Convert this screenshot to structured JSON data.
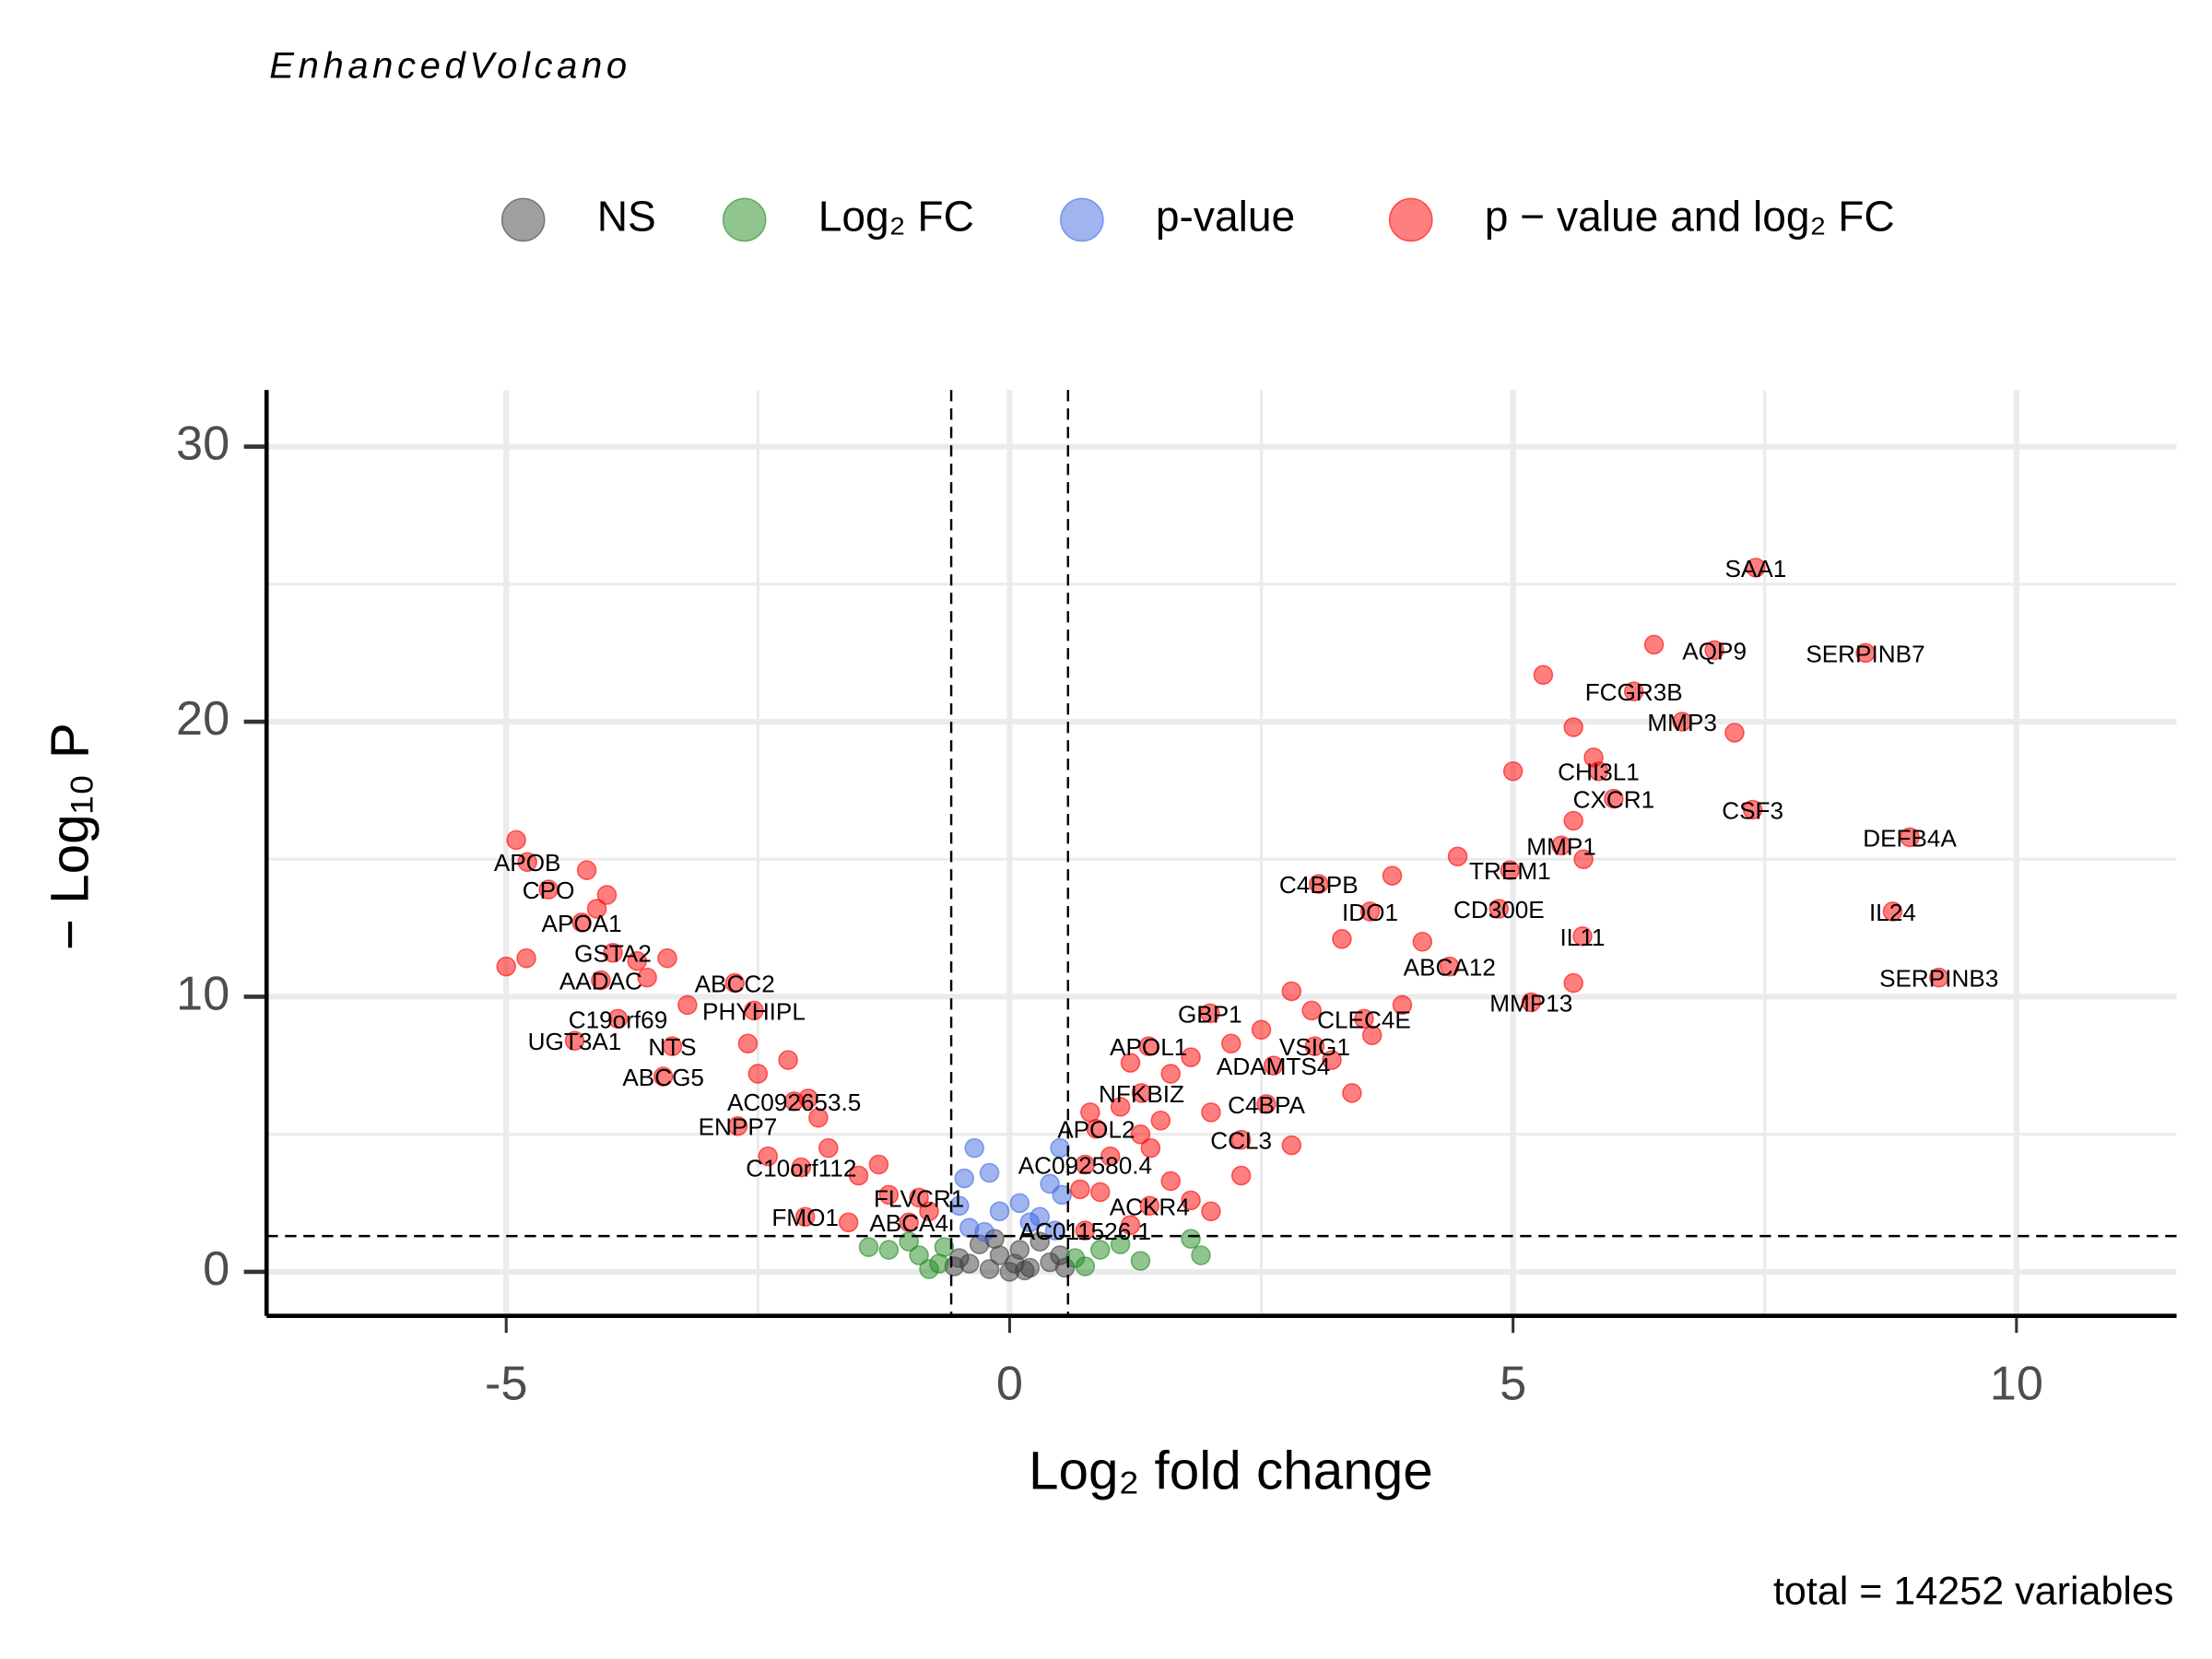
{
  "chart_data": {
    "type": "volcano",
    "title": "EnhancedVolcano",
    "x_label": "Log₂ fold change",
    "y_label": "− Log₁₀ P",
    "caption": "total = 14252 variables",
    "xlim": [
      -7.38,
      11.59
    ],
    "ylim": [
      -1.6,
      32.06
    ],
    "xticks": [
      -5,
      0,
      5,
      10
    ],
    "yticks": [
      0,
      10,
      20,
      30
    ],
    "minor_xticks": [
      -2.5,
      2.5,
      7.5
    ],
    "minor_yticks": [
      5,
      15,
      25
    ],
    "grid": true,
    "fc_cutoff_lines": [
      -0.58,
      0.58
    ],
    "p_cutoff_line": 1.3,
    "legend_position": "top",
    "series": [
      {
        "name": "NS",
        "color": "#404040",
        "x": [
          0,
          -0.2,
          0.2,
          -0.4,
          0.4,
          -0.1,
          0.1,
          -0.3,
          0.3,
          -0.5,
          0.5,
          0.05,
          -0.15,
          0.15,
          -0.55,
          0.55
        ],
        "values": [
          0,
          0.1,
          0.15,
          0.3,
          0.35,
          0.6,
          0.8,
          1.0,
          1.1,
          0.5,
          0.6,
          0.3,
          1.2,
          0.05,
          0.2,
          0.15
        ]
      },
      {
        "name": "Log₂ FC",
        "color": "#228B22",
        "x": [
          -1.2,
          -0.9,
          -0.7,
          -1.0,
          -0.65,
          0.65,
          0.9,
          1.1,
          1.8,
          1.9,
          0.75,
          -0.8,
          1.3,
          -1.4
        ],
        "values": [
          0.8,
          0.6,
          0.3,
          1.1,
          0.9,
          0.5,
          0.8,
          1.0,
          1.2,
          0.6,
          0.2,
          0.1,
          0.4,
          0.9
        ]
      },
      {
        "name": "p-value",
        "color": "#4169E1",
        "x": [
          -0.35,
          -0.45,
          -0.2,
          0.5,
          0.4,
          0.1,
          -0.1,
          0.3,
          -0.4,
          0.45,
          0.2,
          -0.25,
          0.52,
          -0.5
        ],
        "values": [
          4.5,
          3.4,
          3.6,
          4.5,
          3.2,
          2.5,
          2.2,
          2.0,
          1.6,
          1.5,
          1.8,
          1.45,
          2.8,
          2.4
        ]
      },
      {
        "name": "p − value and log₂ FC",
        "color": "#FF0000",
        "x": [
          7.41,
          7.0,
          8.5,
          6.2,
          6.68,
          5.85,
          6.0,
          7.38,
          8.94,
          5.48,
          4.97,
          3.07,
          4.86,
          3.58,
          8.77,
          5.69,
          4.37,
          9.23,
          5.18,
          1.99,
          3.52,
          1.38,
          3.03,
          2.62,
          1.31,
          2.55,
          0.86,
          2.3,
          0.75,
          1.39,
          0.75,
          -4.79,
          -4.58,
          -4.25,
          -3.94,
          -4.06,
          -2.73,
          -3.89,
          -2.54,
          -4.32,
          -3.35,
          -3.44,
          -2.14,
          -2.7,
          -2.07,
          -0.9,
          -2.03,
          -1.0,
          -4.9,
          -5.0,
          -4.8,
          -4.2,
          -4.0,
          -4.1,
          -3.7,
          -3.4,
          -3.6,
          -3.2,
          -2.6,
          -2.5,
          -2.2,
          -2.0,
          -1.9,
          -1.8,
          -2.4,
          -1.5,
          -1.2,
          -1.3,
          -0.8,
          -1.6,
          5.3,
          5.6,
          6.4,
          7.2,
          5.0,
          5.8,
          5.6,
          5.7,
          4.45,
          3.8,
          5.6,
          4.1,
          3.3,
          3.9,
          2.8,
          3.0,
          2.5,
          2.2,
          1.8,
          1.6,
          1.2,
          1.1,
          0.8,
          1.5,
          2.0,
          2.3,
          2.8,
          1.4,
          1.0,
          0.7,
          1.6,
          1.8,
          0.9,
          1.2,
          2.0,
          1.3,
          3.4,
          3.2,
          3.6
        ],
        "values": [
          25.6,
          22.6,
          22.5,
          21.1,
          20.0,
          18.2,
          17.2,
          16.8,
          15.8,
          15.5,
          14.6,
          14.1,
          13.2,
          13.1,
          13.1,
          12.2,
          11.1,
          10.7,
          9.8,
          9.4,
          9.2,
          8.2,
          8.2,
          7.5,
          6.5,
          6.1,
          5.2,
          4.8,
          3.9,
          2.4,
          1.5,
          14.9,
          13.9,
          12.7,
          11.6,
          10.6,
          10.5,
          9.2,
          9.5,
          8.4,
          8.2,
          7.1,
          6.2,
          5.3,
          3.8,
          2.7,
          2.0,
          1.8,
          15.7,
          11.1,
          11.4,
          14.6,
          13.7,
          13.2,
          11.3,
          11.4,
          10.7,
          9.7,
          8.3,
          7.2,
          7.7,
          6.3,
          5.6,
          4.5,
          4.2,
          3.5,
          2.8,
          3.9,
          2.2,
          1.8,
          21.7,
          19.8,
          22.8,
          19.6,
          18.2,
          18.7,
          16.4,
          15.0,
          15.1,
          14.4,
          10.5,
          12.0,
          12.1,
          9.7,
          10.2,
          9.5,
          8.8,
          8.3,
          7.8,
          7.2,
          7.6,
          6.0,
          5.8,
          5.5,
          5.8,
          3.5,
          4.6,
          4.5,
          4.2,
          3.0,
          3.3,
          2.6,
          2.9,
          1.7,
          2.2,
          5.0,
          6.5,
          7.7,
          8.6
        ]
      }
    ],
    "labels": [
      {
        "text": "SAA1",
        "x": 7.41,
        "y": 25.6
      },
      {
        "text": "AQP9",
        "x": 7.0,
        "y": 22.6
      },
      {
        "text": "SERPINB7",
        "x": 8.5,
        "y": 22.5
      },
      {
        "text": "FCGR3B",
        "x": 6.2,
        "y": 21.1
      },
      {
        "text": "MMP3",
        "x": 6.68,
        "y": 20.0
      },
      {
        "text": "CHI3L1",
        "x": 5.85,
        "y": 18.2
      },
      {
        "text": "CXCR1",
        "x": 6.0,
        "y": 17.2
      },
      {
        "text": "CSF3",
        "x": 7.38,
        "y": 16.8
      },
      {
        "text": "DEFB4A",
        "x": 8.94,
        "y": 15.8
      },
      {
        "text": "MMP1",
        "x": 5.48,
        "y": 15.5
      },
      {
        "text": "TREM1",
        "x": 4.97,
        "y": 14.6
      },
      {
        "text": "C4BPB",
        "x": 3.07,
        "y": 14.1
      },
      {
        "text": "CD300E",
        "x": 4.86,
        "y": 13.2
      },
      {
        "text": "IDO1",
        "x": 3.58,
        "y": 13.1
      },
      {
        "text": "IL24",
        "x": 8.77,
        "y": 13.1
      },
      {
        "text": "IL11",
        "x": 5.69,
        "y": 12.2
      },
      {
        "text": "ABCA12",
        "x": 4.37,
        "y": 11.1
      },
      {
        "text": "SERPINB3",
        "x": 9.23,
        "y": 10.7
      },
      {
        "text": "MMP13",
        "x": 5.18,
        "y": 9.8
      },
      {
        "text": "GBP1",
        "x": 1.99,
        "y": 9.4
      },
      {
        "text": "CLEC4E",
        "x": 3.52,
        "y": 9.2
      },
      {
        "text": "APOL1",
        "x": 1.38,
        "y": 8.2
      },
      {
        "text": "VSIG1",
        "x": 3.03,
        "y": 8.2
      },
      {
        "text": "ADAMTS4",
        "x": 2.62,
        "y": 7.5
      },
      {
        "text": "NFKBIZ",
        "x": 1.31,
        "y": 6.5
      },
      {
        "text": "C4BPA",
        "x": 2.55,
        "y": 6.1
      },
      {
        "text": "APOL2",
        "x": 0.86,
        "y": 5.2
      },
      {
        "text": "CCL3",
        "x": 2.3,
        "y": 4.8
      },
      {
        "text": "AC092580.4",
        "x": 0.75,
        "y": 3.9
      },
      {
        "text": "ACKR4",
        "x": 1.39,
        "y": 2.4
      },
      {
        "text": "AC011526.1",
        "x": 0.75,
        "y": 1.5
      },
      {
        "text": "APOB",
        "x": -4.79,
        "y": 14.9
      },
      {
        "text": "CPO",
        "x": -4.58,
        "y": 13.9
      },
      {
        "text": "APOA1",
        "x": -4.25,
        "y": 12.7
      },
      {
        "text": "GSTA2",
        "x": -3.94,
        "y": 11.6
      },
      {
        "text": "AADAC",
        "x": -4.06,
        "y": 10.6
      },
      {
        "text": "ABCC2",
        "x": -2.73,
        "y": 10.5
      },
      {
        "text": "C19orf69",
        "x": -3.89,
        "y": 9.2
      },
      {
        "text": "PHYHIPL",
        "x": -2.54,
        "y": 9.5
      },
      {
        "text": "UGT3A1",
        "x": -4.32,
        "y": 8.4
      },
      {
        "text": "NTS",
        "x": -3.35,
        "y": 8.2
      },
      {
        "text": "ABCG5",
        "x": -3.44,
        "y": 7.1
      },
      {
        "text": "AC092653.5",
        "x": -2.14,
        "y": 6.2
      },
      {
        "text": "ENPP7",
        "x": -2.7,
        "y": 5.3
      },
      {
        "text": "C10orf112",
        "x": -2.07,
        "y": 3.8
      },
      {
        "text": "FLVCR1",
        "x": -0.9,
        "y": 2.7
      },
      {
        "text": "FMO1",
        "x": -2.03,
        "y": 2.0
      },
      {
        "text": "ABCA4",
        "x": -1.0,
        "y": 1.8
      }
    ]
  }
}
